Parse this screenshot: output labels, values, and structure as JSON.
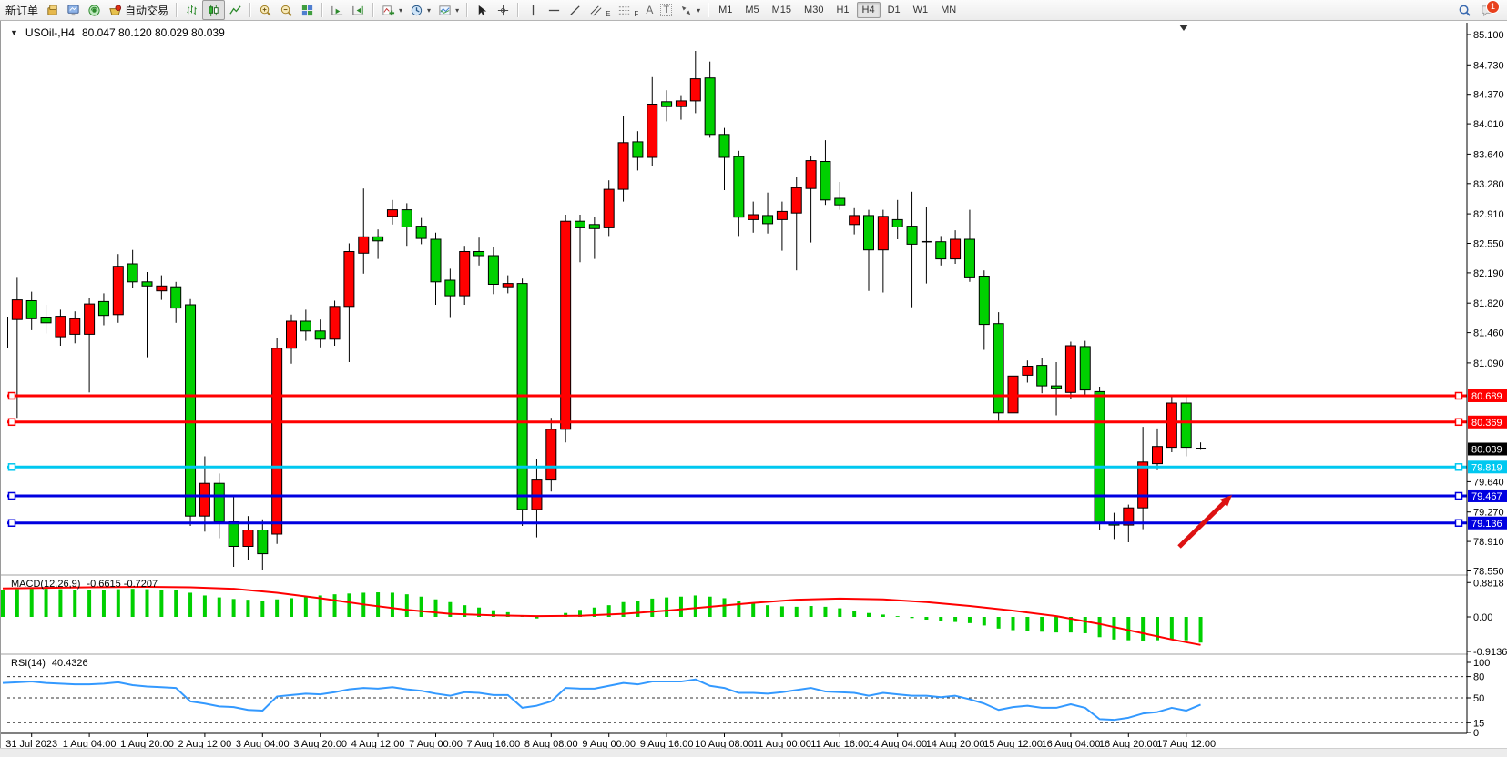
{
  "toolbar": {
    "new_order_label": "新订单",
    "auto_trading_label": "自动交易",
    "text_tool_label": "A",
    "label_tool_label": "T",
    "channel_tool_label": "E",
    "fibo_tool_label": "F",
    "timeframes": [
      "M1",
      "M5",
      "M15",
      "M30",
      "H1",
      "H4",
      "D1",
      "W1",
      "MN"
    ],
    "active_timeframe": "H4",
    "notification_count": "1"
  },
  "header": {
    "symbol_title": "USOil-,H4",
    "ohlc_text": "80.047 80.120 80.029 80.039"
  },
  "indicators": {
    "macd_label": "MACD(12,26,9)",
    "macd_values": "-0.6615 -0.7207",
    "rsi_label": "RSI(14)",
    "rsi_value": "40.4326"
  },
  "chart_data": {
    "type": "candlestick",
    "symbol": "USOil-",
    "timeframe": "H4",
    "current_ohlc": {
      "open": 80.047,
      "high": 80.12,
      "low": 80.029,
      "close": 80.039
    },
    "colors": {
      "bull": "#ff0000",
      "bear": "#00d000",
      "outline": "#000000",
      "macd_hist": "#00d000",
      "macd_signal": "#ff0000",
      "rsi_line": "#3399ff"
    },
    "price_axis_ticks": [
      "85.100",
      "84.730",
      "84.370",
      "84.010",
      "83.640",
      "83.280",
      "82.910",
      "82.550",
      "82.190",
      "81.820",
      "81.460",
      "81.090",
      "79.640",
      "79.270",
      "78.910",
      "78.550"
    ],
    "price_axis_range": [
      78.555,
      85.1
    ],
    "hlines": [
      {
        "price": 80.689,
        "label": "80.689",
        "color": "#ff0000",
        "width": 3,
        "markers": true
      },
      {
        "price": 80.369,
        "label": "80.369",
        "color": "#ff0000",
        "width": 3,
        "markers": true
      },
      {
        "price": 80.039,
        "label": "80.039",
        "color": "#000000",
        "width": 1,
        "markers": false
      },
      {
        "price": 79.819,
        "label": "79.819",
        "color": "#00c8f0",
        "width": 3,
        "markers": true
      },
      {
        "price": 79.467,
        "label": "79.467",
        "color": "#0000e0",
        "width": 3,
        "markers": true
      },
      {
        "price": 79.136,
        "label": "79.136",
        "color": "#0000e0",
        "width": 3,
        "markers": true
      }
    ],
    "x_labels": [
      "31 Jul 2023",
      "1 Aug 04:00",
      "1 Aug 20:00",
      "2 Aug 12:00",
      "3 Aug 04:00",
      "3 Aug 20:00",
      "4 Aug 12:00",
      "7 Aug 00:00",
      "7 Aug 16:00",
      "8 Aug 08:00",
      "9 Aug 00:00",
      "9 Aug 16:00",
      "10 Aug 08:00",
      "11 Aug 00:00",
      "11 Aug 16:00",
      "14 Aug 04:00",
      "14 Aug 20:00",
      "15 Aug 12:00",
      "16 Aug 04:00",
      "16 Aug 20:00",
      "17 Aug 12:00"
    ],
    "x_label_first_index": 2,
    "x_label_step": 4,
    "candles": [
      [
        "31 Jul 04:00",
        81.28,
        81.97,
        80.86,
        81.65
      ],
      [
        "31 Jul 08:00",
        81.62,
        82.14,
        80.42,
        81.86
      ],
      [
        "31 Jul 12:00",
        81.85,
        81.96,
        81.49,
        81.63
      ],
      [
        "31 Jul 16:00",
        81.65,
        81.8,
        81.45,
        81.58
      ],
      [
        "31 Jul 20:00",
        81.41,
        81.74,
        81.3,
        81.66
      ],
      [
        "1 Aug 00:00",
        81.44,
        81.72,
        81.33,
        81.63
      ],
      [
        "1 Aug 04:00",
        81.44,
        81.88,
        80.73,
        81.81
      ],
      [
        "1 Aug 08:00",
        81.84,
        81.94,
        81.55,
        81.67
      ],
      [
        "1 Aug 12:00",
        81.68,
        82.42,
        81.58,
        82.27
      ],
      [
        "1 Aug 16:00",
        82.3,
        82.47,
        82.0,
        82.08
      ],
      [
        "1 Aug 20:00",
        82.08,
        82.2,
        81.16,
        82.03
      ],
      [
        "2 Aug 00:00",
        81.97,
        82.16,
        81.86,
        82.03
      ],
      [
        "2 Aug 04:00",
        82.02,
        82.08,
        81.58,
        81.76
      ],
      [
        "2 Aug 08:00",
        81.8,
        81.87,
        79.1,
        79.22
      ],
      [
        "2 Aug 12:00",
        79.22,
        79.95,
        79.03,
        79.62
      ],
      [
        "2 Aug 16:00",
        79.62,
        79.74,
        78.95,
        79.15
      ],
      [
        "2 Aug 20:00",
        79.15,
        79.45,
        78.6,
        78.85
      ],
      [
        "3 Aug 00:00",
        78.85,
        79.22,
        78.68,
        79.05
      ],
      [
        "3 Aug 04:00",
        79.05,
        79.18,
        78.56,
        78.76
      ],
      [
        "3 Aug 08:00",
        79.0,
        81.4,
        78.88,
        81.27
      ],
      [
        "3 Aug 12:00",
        81.27,
        81.68,
        81.08,
        81.6
      ],
      [
        "3 Aug 16:00",
        81.6,
        81.74,
        81.36,
        81.48
      ],
      [
        "3 Aug 20:00",
        81.48,
        81.62,
        81.28,
        81.38
      ],
      [
        "4 Aug 00:00",
        81.38,
        81.85,
        81.3,
        81.78
      ],
      [
        "4 Aug 04:00",
        81.78,
        82.55,
        81.1,
        82.45
      ],
      [
        "4 Aug 08:00",
        82.43,
        83.22,
        82.18,
        82.63
      ],
      [
        "4 Aug 12:00",
        82.63,
        82.72,
        82.36,
        82.58
      ],
      [
        "4 Aug 16:00",
        82.88,
        83.08,
        82.78,
        82.96
      ],
      [
        "4 Aug 20:00",
        82.96,
        83.04,
        82.52,
        82.75
      ],
      [
        "6 Aug 20:00",
        82.76,
        82.86,
        82.54,
        82.61
      ],
      [
        "7 Aug 00:00",
        82.6,
        82.68,
        81.8,
        82.08
      ],
      [
        "7 Aug 04:00",
        82.1,
        82.24,
        81.65,
        81.91
      ],
      [
        "7 Aug 08:00",
        81.91,
        82.52,
        81.8,
        82.45
      ],
      [
        "7 Aug 12:00",
        82.45,
        82.62,
        82.28,
        82.4
      ],
      [
        "7 Aug 16:00",
        82.4,
        82.5,
        81.93,
        82.05
      ],
      [
        "7 Aug 20:00",
        82.02,
        82.16,
        81.94,
        82.06
      ],
      [
        "8 Aug 00:00",
        82.06,
        82.12,
        79.1,
        79.3
      ],
      [
        "8 Aug 04:00",
        79.3,
        79.92,
        78.96,
        79.66
      ],
      [
        "8 Aug 08:00",
        79.66,
        80.42,
        79.52,
        80.28
      ],
      [
        "8 Aug 12:00",
        80.28,
        82.9,
        80.12,
        82.82
      ],
      [
        "8 Aug 16:00",
        82.82,
        82.9,
        82.32,
        82.74
      ],
      [
        "8 Aug 20:00",
        82.78,
        82.87,
        82.36,
        82.73
      ],
      [
        "9 Aug 00:00",
        82.74,
        83.32,
        82.64,
        83.21
      ],
      [
        "9 Aug 04:00",
        83.21,
        84.1,
        83.06,
        83.78
      ],
      [
        "9 Aug 08:00",
        83.79,
        83.92,
        83.44,
        83.6
      ],
      [
        "9 Aug 12:00",
        83.6,
        84.58,
        83.5,
        84.25
      ],
      [
        "9 Aug 16:00",
        84.28,
        84.42,
        84.04,
        84.22
      ],
      [
        "9 Aug 20:00",
        84.22,
        84.36,
        84.06,
        84.29
      ],
      [
        "10 Aug 00:00",
        84.29,
        84.9,
        84.14,
        84.56
      ],
      [
        "10 Aug 04:00",
        84.57,
        84.77,
        83.84,
        83.88
      ],
      [
        "10 Aug 08:00",
        83.88,
        83.96,
        83.2,
        83.6
      ],
      [
        "10 Aug 12:00",
        83.61,
        83.68,
        82.64,
        82.87
      ],
      [
        "10 Aug 16:00",
        82.84,
        83.06,
        82.68,
        82.9
      ],
      [
        "10 Aug 20:00",
        82.89,
        83.17,
        82.67,
        82.79
      ],
      [
        "11 Aug 00:00",
        82.84,
        83.06,
        82.46,
        82.94
      ],
      [
        "11 Aug 04:00",
        82.92,
        83.36,
        82.22,
        83.23
      ],
      [
        "11 Aug 08:00",
        83.22,
        83.62,
        82.56,
        83.56
      ],
      [
        "11 Aug 12:00",
        83.55,
        83.81,
        83.02,
        83.08
      ],
      [
        "11 Aug 16:00",
        83.1,
        83.3,
        82.96,
        83.02
      ],
      [
        "11 Aug 20:00",
        82.78,
        82.98,
        82.66,
        82.89
      ],
      [
        "13 Aug 20:00",
        82.89,
        82.96,
        81.97,
        82.47
      ],
      [
        "14 Aug 00:00",
        82.47,
        82.96,
        81.95,
        82.88
      ],
      [
        "14 Aug 04:00",
        82.84,
        83.08,
        82.6,
        82.75
      ],
      [
        "14 Aug 08:00",
        82.76,
        83.18,
        81.77,
        82.54
      ],
      [
        "14 Aug 12:00",
        82.56,
        83.0,
        82.06,
        82.57
      ],
      [
        "14 Aug 16:00",
        82.57,
        82.64,
        82.28,
        82.36
      ],
      [
        "14 Aug 20:00",
        82.36,
        82.71,
        82.3,
        82.6
      ],
      [
        "15 Aug 00:00",
        82.6,
        82.96,
        82.08,
        82.14
      ],
      [
        "15 Aug 04:00",
        82.15,
        82.22,
        81.25,
        81.56
      ],
      [
        "15 Aug 08:00",
        81.57,
        81.71,
        80.36,
        80.48
      ],
      [
        "15 Aug 12:00",
        80.48,
        81.08,
        80.3,
        80.93
      ],
      [
        "15 Aug 16:00",
        80.94,
        81.12,
        80.85,
        81.05
      ],
      [
        "15 Aug 20:00",
        81.06,
        81.15,
        80.72,
        80.81
      ],
      [
        "16 Aug 00:00",
        80.81,
        81.1,
        80.45,
        80.78
      ],
      [
        "16 Aug 04:00",
        80.73,
        81.35,
        80.65,
        81.3
      ],
      [
        "16 Aug 08:00",
        81.29,
        81.36,
        80.7,
        80.76
      ],
      [
        "16 Aug 12:00",
        80.74,
        80.8,
        79.05,
        79.13
      ],
      [
        "16 Aug 16:00",
        79.13,
        79.26,
        78.94,
        79.11
      ],
      [
        "16 Aug 20:00",
        79.11,
        79.36,
        78.9,
        79.32
      ],
      [
        "17 Aug 00:00",
        79.32,
        80.31,
        79.06,
        79.88
      ],
      [
        "17 Aug 04:00",
        79.86,
        80.29,
        79.78,
        80.07
      ],
      [
        "17 Aug 08:00",
        80.06,
        80.7,
        80.0,
        80.6
      ],
      [
        "17 Aug 12:00",
        80.6,
        80.68,
        79.95,
        80.06
      ],
      [
        "17 Aug 16:00",
        80.047,
        80.12,
        80.029,
        80.039
      ]
    ],
    "macd": {
      "label": "MACD(12,26,9)",
      "values_text": "-0.6615 -0.7207",
      "axis_ticks": [
        "0.8818",
        "0.00",
        "-0.9136"
      ],
      "axis_values": [
        0.8818,
        0.0,
        -0.9136
      ],
      "histogram": [
        0.7,
        0.71,
        0.72,
        0.72,
        0.71,
        0.7,
        0.7,
        0.69,
        0.71,
        0.72,
        0.71,
        0.7,
        0.68,
        0.62,
        0.55,
        0.5,
        0.46,
        0.44,
        0.42,
        0.45,
        0.48,
        0.52,
        0.55,
        0.58,
        0.6,
        0.62,
        0.63,
        0.62,
        0.58,
        0.52,
        0.45,
        0.38,
        0.3,
        0.24,
        0.17,
        0.12,
        0.02,
        -0.04,
        0.02,
        0.1,
        0.18,
        0.24,
        0.3,
        0.38,
        0.42,
        0.47,
        0.5,
        0.52,
        0.55,
        0.52,
        0.48,
        0.4,
        0.34,
        0.3,
        0.27,
        0.26,
        0.28,
        0.26,
        0.22,
        0.16,
        0.1,
        0.06,
        0.02,
        -0.03,
        -0.07,
        -0.11,
        -0.13,
        -0.16,
        -0.22,
        -0.3,
        -0.34,
        -0.36,
        -0.38,
        -0.4,
        -0.4,
        -0.42,
        -0.52,
        -0.58,
        -0.6,
        -0.62,
        -0.6,
        -0.57,
        -0.6,
        -0.66
      ],
      "signal_points": [
        [
          0,
          0.73
        ],
        [
          6,
          0.76
        ],
        [
          10,
          0.77
        ],
        [
          13,
          0.76
        ],
        [
          16,
          0.72
        ],
        [
          19,
          0.62
        ],
        [
          22,
          0.48
        ],
        [
          25,
          0.32
        ],
        [
          28,
          0.18
        ],
        [
          31,
          0.08
        ],
        [
          34,
          0.04
        ],
        [
          37,
          0.02
        ],
        [
          40,
          0.03
        ],
        [
          43,
          0.08
        ],
        [
          46,
          0.16
        ],
        [
          49,
          0.26
        ],
        [
          52,
          0.36
        ],
        [
          55,
          0.44
        ],
        [
          58,
          0.47
        ],
        [
          61,
          0.45
        ],
        [
          64,
          0.38
        ],
        [
          67,
          0.28
        ],
        [
          70,
          0.16
        ],
        [
          73,
          0.02
        ],
        [
          76,
          -0.18
        ],
        [
          79,
          -0.42
        ],
        [
          81,
          -0.58
        ],
        [
          83,
          -0.72
        ]
      ]
    },
    "rsi": {
      "label": "RSI(14)",
      "value_text": "40.4326",
      "axis_ticks": [
        "100",
        "80",
        "50",
        "15",
        "0"
      ],
      "axis_values": [
        100,
        80,
        50,
        15,
        0
      ],
      "levels": [
        80,
        50,
        15
      ],
      "values": [
        71,
        72,
        73,
        71,
        70,
        69,
        69,
        70,
        72,
        68,
        66,
        65,
        64,
        45,
        42,
        38,
        37,
        33,
        32,
        52,
        54,
        56,
        55,
        58,
        62,
        64,
        63,
        65,
        62,
        60,
        56,
        53,
        58,
        57,
        54,
        54,
        36,
        39,
        45,
        64,
        63,
        63,
        67,
        71,
        69,
        73,
        73,
        73,
        76,
        67,
        64,
        57,
        57,
        56,
        58,
        61,
        64,
        59,
        58,
        57,
        53,
        57,
        55,
        53,
        53,
        51,
        53,
        48,
        42,
        33,
        37,
        39,
        36,
        36,
        41,
        36,
        20,
        19,
        22,
        28,
        30,
        36,
        32,
        40.43
      ]
    },
    "annotation_arrow": {
      "from_xy": [
        1294,
        601
      ],
      "to_xy": [
        1352,
        544
      ],
      "color": "#dd1111"
    }
  }
}
